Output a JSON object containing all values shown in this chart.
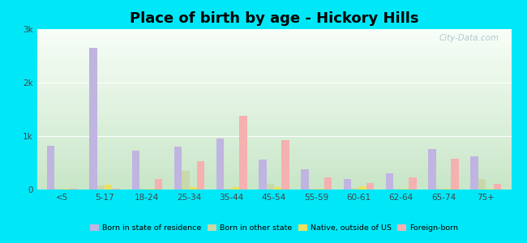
{
  "title": "Place of birth by age - Hickory Hills",
  "categories": [
    "<5",
    "5-17",
    "18-24",
    "25-34",
    "35-44",
    "45-54",
    "55-59",
    "60-61",
    "62-64",
    "65-74",
    "75+"
  ],
  "series": {
    "Born in state of residence": [
      820,
      2650,
      730,
      800,
      950,
      560,
      380,
      200,
      310,
      760,
      620
    ],
    "Born in other state": [
      15,
      70,
      15,
      350,
      20,
      100,
      20,
      25,
      15,
      15,
      190
    ],
    "Native, outside of US": [
      10,
      90,
      10,
      50,
      40,
      45,
      15,
      55,
      10,
      10,
      10
    ],
    "Foreign-born": [
      10,
      10,
      200,
      530,
      1380,
      920,
      220,
      120,
      230,
      570,
      100
    ]
  },
  "colors": {
    "Born in state of residence": "#c0b4e0",
    "Born in other state": "#c8d8a8",
    "Native, outside of US": "#ece060",
    "Foreign-born": "#f5b0b0"
  },
  "legend_labels": [
    "Born in state of residence",
    "Born in other state",
    "Native, outside of US",
    "Foreign-born"
  ],
  "ylim": [
    0,
    3000
  ],
  "yticks": [
    0,
    1000,
    2000,
    3000
  ],
  "ytick_labels": [
    "0",
    "1k",
    "2k",
    "3k"
  ],
  "bg_top": "#f8fef8",
  "bg_bottom": "#d8f0d0",
  "outer_background": "#00e8f8",
  "title_fontsize": 13,
  "bar_width": 0.18
}
